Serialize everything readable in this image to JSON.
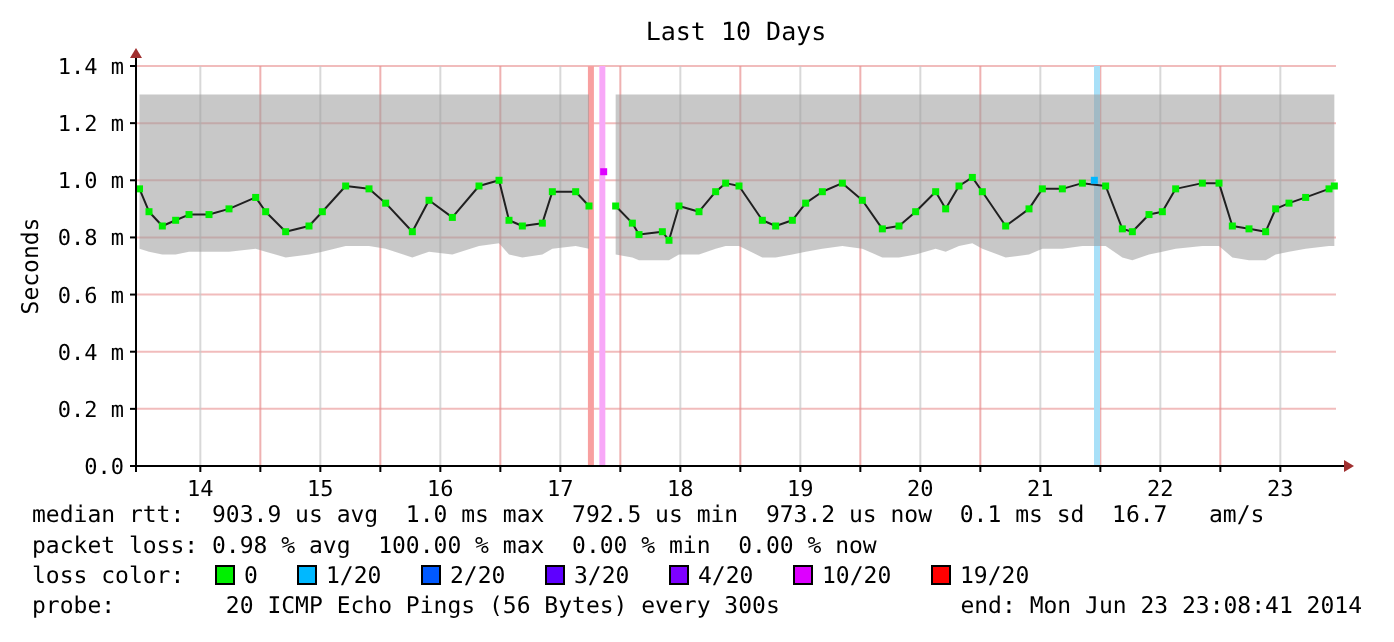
{
  "chart_data": {
    "type": "line",
    "title": "Last 10 Days",
    "ylabel": "Seconds",
    "legend_title": "loss color:",
    "legend": "bottom",
    "grid": true,
    "marker": "square",
    "xlim": [
      "2014-06-13T23:08",
      "2014-06-23T23:08"
    ],
    "xticks": [
      {
        "value": "2014-06-14T12:00",
        "label": "14"
      },
      {
        "value": "2014-06-15T00:00",
        "label": null
      },
      {
        "value": "2014-06-15T12:00",
        "label": "15"
      },
      {
        "value": "2014-06-16T00:00",
        "label": null
      },
      {
        "value": "2014-06-16T12:00",
        "label": "16"
      },
      {
        "value": "2014-06-17T00:00",
        "label": null
      },
      {
        "value": "2014-06-17T12:00",
        "label": "17"
      },
      {
        "value": "2014-06-18T00:00",
        "label": null
      },
      {
        "value": "2014-06-18T12:00",
        "label": "18"
      },
      {
        "value": "2014-06-19T00:00",
        "label": null
      },
      {
        "value": "2014-06-19T12:00",
        "label": "19"
      },
      {
        "value": "2014-06-20T00:00",
        "label": null
      },
      {
        "value": "2014-06-20T12:00",
        "label": "20"
      },
      {
        "value": "2014-06-21T00:00",
        "label": null
      },
      {
        "value": "2014-06-21T12:00",
        "label": "21"
      },
      {
        "value": "2014-06-22T00:00",
        "label": null
      },
      {
        "value": "2014-06-22T12:00",
        "label": "22"
      },
      {
        "value": "2014-06-23T00:00",
        "label": null
      },
      {
        "value": "2014-06-23T12:00",
        "label": "23"
      }
    ],
    "ylim": [
      0,
      1.4
    ],
    "yticks": [
      {
        "value": 0,
        "label": "0.0"
      },
      {
        "value": 0.2,
        "label": "0.2 m"
      },
      {
        "value": 0.4,
        "label": "0.4 m"
      },
      {
        "value": 0.6,
        "label": "0.6 m"
      },
      {
        "value": 0.8,
        "label": "0.8 m"
      },
      {
        "value": 1.0,
        "label": "1.0 m"
      },
      {
        "value": 1.2,
        "label": "1.2 m"
      },
      {
        "value": 1.4,
        "label": "1.4 m"
      }
    ],
    "ref_lines": [
      {
        "axis": "x",
        "value": "2014-06-17T18:07",
        "color": "#f8a0a0"
      },
      {
        "axis": "x",
        "value": "2014-06-17T20:24",
        "color": "#f8a8f8"
      },
      {
        "axis": "x",
        "value": "2014-06-21T23:20",
        "color": "#a8e0f8"
      }
    ],
    "series": [
      {
        "name": "0",
        "color": "#00f000",
        "x": [
          "2014-06-13T23:50",
          "2014-06-14T01:44",
          "2014-06-14T04:24",
          "2014-06-14T07:04",
          "2014-06-14T09:44",
          "2014-06-14T13:44",
          "2014-06-14T17:44",
          "2014-06-14T23:04",
          "2014-06-15T01:04",
          "2014-06-15T05:04",
          "2014-06-15T09:44",
          "2014-06-15T12:24",
          "2014-06-15T17:04",
          "2014-06-15T21:44",
          "2014-06-16T01:04",
          "2014-06-16T06:24",
          "2014-06-16T09:44",
          "2014-06-16T14:24",
          "2014-06-16T19:44",
          "2014-06-16T23:44",
          "2014-06-17T01:44",
          "2014-06-17T04:24",
          "2014-06-17T08:24",
          "2014-06-17T10:24",
          "2014-06-17T15:04",
          "2014-06-17T17:44",
          "2014-06-17T18:30",
          "2014-06-17T23:04",
          "2014-06-18T02:24",
          "2014-06-18T03:44",
          "2014-06-18T08:24",
          "2014-06-18T09:44",
          "2014-06-18T11:44",
          "2014-06-18T15:44",
          "2014-06-18T19:04",
          "2014-06-18T21:04",
          "2014-06-18T23:44",
          "2014-06-19T04:24",
          "2014-06-19T07:04",
          "2014-06-19T10:24",
          "2014-06-19T13:04",
          "2014-06-19T16:24",
          "2014-06-19T20:24",
          "2014-06-20T00:24",
          "2014-06-20T04:24",
          "2014-06-20T07:44",
          "2014-06-20T11:04",
          "2014-06-20T15:04",
          "2014-06-20T17:04",
          "2014-06-20T19:44",
          "2014-06-20T22:24",
          "2014-06-21T00:24",
          "2014-06-21T05:04",
          "2014-06-21T09:44",
          "2014-06-21T12:24",
          "2014-06-21T16:24",
          "2014-06-21T20:24",
          "2014-06-22T01:04",
          "2014-06-22T04:24",
          "2014-06-22T06:24",
          "2014-06-22T09:44",
          "2014-06-22T12:24",
          "2014-06-22T15:04",
          "2014-06-22T20:24",
          "2014-06-22T23:44",
          "2014-06-23T02:24",
          "2014-06-23T05:44",
          "2014-06-23T09:04",
          "2014-06-23T11:04",
          "2014-06-23T13:44",
          "2014-06-23T17:04",
          "2014-06-23T21:44",
          "2014-06-23T22:48"
        ],
        "values": [
          0.97,
          0.89,
          0.84,
          0.86,
          0.88,
          0.88,
          0.9,
          0.94,
          0.89,
          0.82,
          0.84,
          0.89,
          0.98,
          0.97,
          0.92,
          0.82,
          0.93,
          0.87,
          0.98,
          1.0,
          0.86,
          0.84,
          0.85,
          0.96,
          0.96,
          0.91,
          null,
          0.91,
          0.85,
          0.81,
          0.82,
          0.79,
          0.91,
          0.89,
          0.96,
          0.99,
          0.98,
          0.86,
          0.84,
          0.86,
          0.92,
          0.96,
          0.99,
          0.93,
          0.83,
          0.84,
          0.89,
          0.96,
          0.9,
          0.98,
          1.01,
          0.96,
          0.84,
          0.9,
          0.97,
          0.97,
          0.99,
          0.98,
          0.83,
          0.82,
          0.88,
          0.89,
          0.97,
          0.99,
          0.99,
          0.84,
          0.83,
          0.82,
          0.9,
          0.92,
          0.94,
          0.97,
          0.98
        ],
        "lower": [
          0.76,
          0.75,
          0.74,
          0.74,
          0.75,
          0.75,
          0.75,
          0.76,
          0.75,
          0.73,
          0.74,
          0.75,
          0.77,
          0.77,
          0.76,
          0.73,
          0.75,
          0.74,
          0.77,
          0.78,
          0.74,
          0.73,
          0.74,
          0.76,
          0.77,
          0.76,
          null,
          0.74,
          0.73,
          0.72,
          0.72,
          0.72,
          0.74,
          0.74,
          0.76,
          0.77,
          0.77,
          0.73,
          0.73,
          0.74,
          0.75,
          0.76,
          0.77,
          0.76,
          0.73,
          0.73,
          0.74,
          0.76,
          0.75,
          0.77,
          0.78,
          0.76,
          0.73,
          0.74,
          0.76,
          0.76,
          0.77,
          0.77,
          0.73,
          0.72,
          0.74,
          0.75,
          0.76,
          0.77,
          0.77,
          0.73,
          0.72,
          0.72,
          0.74,
          0.75,
          0.76,
          0.77,
          0.77
        ],
        "upper": [
          1.3,
          1.3,
          1.3,
          1.3,
          1.3,
          1.3,
          1.3,
          1.3,
          1.3,
          1.3,
          1.3,
          1.3,
          1.3,
          1.3,
          1.3,
          1.3,
          1.3,
          1.3,
          1.3,
          1.3,
          1.3,
          1.3,
          1.3,
          1.3,
          1.3,
          1.3,
          null,
          1.3,
          1.3,
          1.3,
          1.3,
          1.3,
          1.3,
          1.3,
          1.3,
          1.3,
          1.3,
          1.3,
          1.3,
          1.3,
          1.3,
          1.3,
          1.3,
          1.3,
          1.3,
          1.3,
          1.3,
          1.3,
          1.3,
          1.3,
          1.3,
          1.3,
          1.3,
          1.3,
          1.3,
          1.3,
          1.3,
          1.3,
          1.3,
          1.3,
          1.3,
          1.3,
          1.3,
          1.3,
          1.3,
          1.3,
          1.3,
          1.3,
          1.3,
          1.3,
          1.3,
          1.3,
          1.3
        ]
      },
      {
        "name": "1/20",
        "type": "scatter",
        "color": "#00b8ff",
        "x": [
          "2014-06-21T22:48"
        ],
        "values": [
          1.0
        ]
      },
      {
        "name": "2/20",
        "type": "scatter",
        "color": "#0059ff"
      },
      {
        "name": "3/20",
        "type": "scatter",
        "color": "#5e00ff"
      },
      {
        "name": "4/20",
        "type": "scatter",
        "color": "#7e00ff"
      },
      {
        "name": "10/20",
        "type": "scatter",
        "color": "#dd00ff",
        "x": [
          "2014-06-17T20:40"
        ],
        "values": [
          1.03
        ]
      },
      {
        "name": "19/20",
        "type": "scatter",
        "color": "#ff0000"
      }
    ],
    "annotations": [
      "median rtt:  903.9 us avg  1.0 ms max  792.5 us min  973.2 us now  0.1 ms sd  16.7   am/s",
      "packet loss: 0.98 % avg  100.00 % max  0.00 % min  0.00 % now",
      "probe:        20 ICMP Echo Pings (56 Bytes) every 300s",
      "end: Mon Jun 23 23:08:41 2014"
    ]
  }
}
